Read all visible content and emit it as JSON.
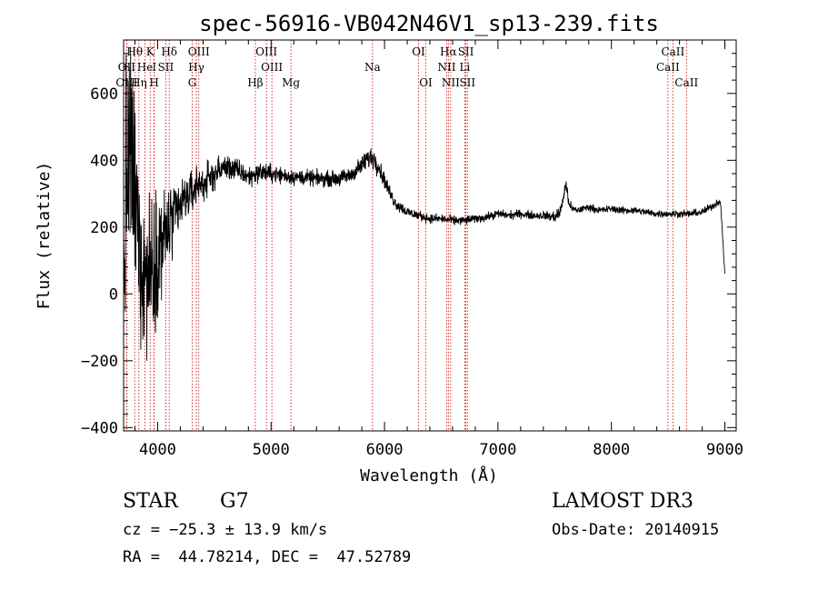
{
  "chart_data": {
    "type": "line",
    "title": "spec-56916-VB042N46V1_sp13-239.fits",
    "xlabel": "Wavelength (Å)",
    "ylabel": "Flux (relative)",
    "xlim": [
      3700,
      9100
    ],
    "ylim": [
      -410,
      760
    ],
    "xticks": [
      4000,
      5000,
      6000,
      7000,
      8000,
      9000
    ],
    "yticks": [
      -400,
      -200,
      0,
      200,
      400,
      600
    ],
    "tick_labels_x": [
      "4000",
      "5000",
      "6000",
      "7000",
      "8000",
      "9000"
    ],
    "tick_labels_y": [
      "−400",
      "−200",
      "0",
      "200",
      "400",
      "600"
    ],
    "spectrum_anchors": {
      "x": [
        3700,
        3720,
        3760,
        3800,
        3850,
        3900,
        3950,
        4000,
        4050,
        4100,
        4150,
        4200,
        4250,
        4300,
        4350,
        4400,
        4450,
        4500,
        4600,
        4700,
        4800,
        4900,
        5000,
        5100,
        5200,
        5300,
        5400,
        5500,
        5600,
        5700,
        5800,
        5850,
        5900,
        5950,
        6000,
        6050,
        6100,
        6200,
        6300,
        6400,
        6500,
        6600,
        6700,
        6800,
        6900,
        7000,
        7100,
        7200,
        7300,
        7400,
        7500,
        7550,
        7600,
        7620,
        7650,
        7700,
        7800,
        7900,
        8000,
        8100,
        8200,
        8300,
        8400,
        8500,
        8600,
        8700,
        8800,
        8900,
        8960,
        9000
      ],
      "y": [
        -60,
        320,
        420,
        280,
        120,
        60,
        80,
        140,
        160,
        200,
        230,
        260,
        290,
        300,
        330,
        330,
        340,
        360,
        380,
        370,
        350,
        365,
        360,
        355,
        350,
        348,
        345,
        345,
        345,
        355,
        385,
        405,
        410,
        380,
        340,
        300,
        270,
        245,
        235,
        225,
        225,
        220,
        220,
        225,
        230,
        240,
        235,
        240,
        235,
        235,
        230,
        245,
        330,
        280,
        255,
        250,
        260,
        250,
        255,
        250,
        250,
        245,
        240,
        240,
        240,
        240,
        245,
        265,
        280,
        60
      ],
      "noise": [
        380,
        380,
        380,
        340,
        300,
        260,
        240,
        200,
        180,
        150,
        110,
        90,
        80,
        70,
        65,
        60,
        55,
        50,
        40,
        38,
        35,
        32,
        30,
        28,
        26,
        25,
        25,
        25,
        25,
        26,
        30,
        35,
        40,
        30,
        25,
        22,
        20,
        18,
        16,
        15,
        15,
        15,
        15,
        14,
        14,
        14,
        14,
        14,
        14,
        14,
        20,
        22,
        20,
        18,
        14,
        12,
        12,
        12,
        12,
        12,
        12,
        12,
        12,
        12,
        12,
        12,
        12,
        12,
        12,
        12
      ]
    },
    "lines": [
      {
        "label": "Hθ",
        "wl": 3798,
        "row": 1
      },
      {
        "label": "OII",
        "wl": 3727,
        "row": 2
      },
      {
        "label": "OIII",
        "wl": 3727,
        "row": 3
      },
      {
        "label": "He",
        "wl": 3889,
        "row": 2
      },
      {
        "label": "Hη",
        "wl": 3835,
        "row": 3
      },
      {
        "label": "K",
        "wl": 3934,
        "row": 1
      },
      {
        "label": "H",
        "wl": 3969,
        "row": 3
      },
      {
        "label": "I",
        "wl": 3970,
        "row": 2
      },
      {
        "label": "Hδ",
        "wl": 4102,
        "row": 1
      },
      {
        "label": "SII",
        "wl": 4072,
        "row": 2
      },
      {
        "label": "OIII",
        "wl": 4363,
        "row": 1
      },
      {
        "label": "Hγ",
        "wl": 4341,
        "row": 2
      },
      {
        "label": "G",
        "wl": 4305,
        "row": 3
      },
      {
        "label": "Hβ",
        "wl": 4861,
        "row": 3
      },
      {
        "label": "OIII",
        "wl": 4959,
        "row": 1
      },
      {
        "label": "OIII",
        "wl": 5007,
        "row": 2
      },
      {
        "label": "Mg",
        "wl": 5175,
        "row": 3
      },
      {
        "label": "Na",
        "wl": 5894,
        "row": 2
      },
      {
        "label": "OI",
        "wl": 6300,
        "row": 1
      },
      {
        "label": "OI",
        "wl": 6364,
        "row": 3
      },
      {
        "label": "Hα",
        "wl": 6563,
        "row": 1
      },
      {
        "label": "NII",
        "wl": 6548,
        "row": 2
      },
      {
        "label": "NII",
        "wl": 6583,
        "row": 3
      },
      {
        "label": "SII",
        "wl": 6717,
        "row": 1
      },
      {
        "label": "Li",
        "wl": 6708,
        "row": 2
      },
      {
        "label": "SII",
        "wl": 6731,
        "row": 3
      },
      {
        "label": "CaII",
        "wl": 8542,
        "row": 1
      },
      {
        "label": "CaII",
        "wl": 8498,
        "row": 2
      },
      {
        "label": "CaII",
        "wl": 8662,
        "row": 3
      }
    ]
  },
  "info": {
    "class": "STAR",
    "subclass": "G7",
    "survey": "LAMOST DR3",
    "cz": "cz = −25.3 ± 13.9 km/s",
    "obs_date": "Obs-Date: 20140915",
    "coords": "RA =  44.78214, DEC =  47.52789"
  },
  "colors": {
    "spectrum": "#000000",
    "line_markers": "#cc0000",
    "axes": "#000000"
  }
}
